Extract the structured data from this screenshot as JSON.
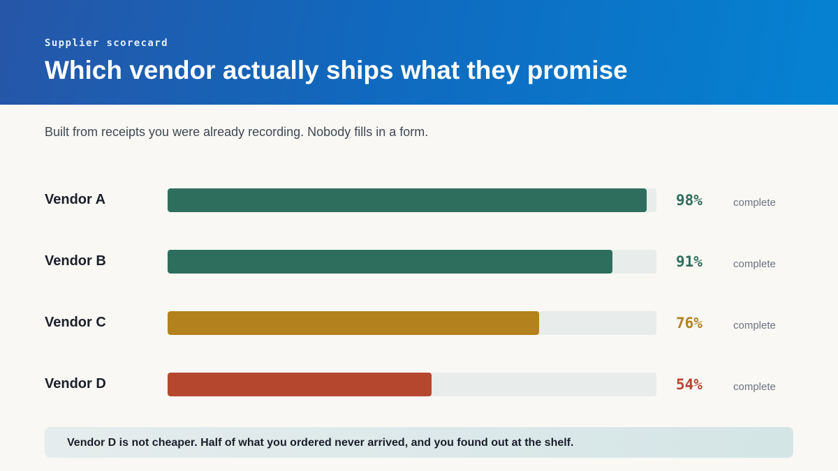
{
  "header": {
    "eyebrow": "Supplier scorecard",
    "title": "Which vendor actually ships what they promise"
  },
  "subtitle": "Built from receipts you were already recording. Nobody fills in a form.",
  "chart_data": {
    "type": "bar",
    "orientation": "horizontal",
    "categories": [
      "Vendor A",
      "Vendor B",
      "Vendor C",
      "Vendor D"
    ],
    "values": [
      98,
      91,
      76,
      54
    ],
    "value_labels": [
      "98%",
      "91%",
      "76%",
      "54%"
    ],
    "unit_label": "complete",
    "xlim": [
      0,
      100
    ],
    "colors": [
      "#2e6e5c",
      "#2e6e5c",
      "#b3811d",
      "#b5472f"
    ],
    "track_color": "#e8ecea",
    "grid": false,
    "legend": "none"
  },
  "note": "Vendor D is not cheaper. Half of what you ordered never arrived, and you found out at the shelf."
}
